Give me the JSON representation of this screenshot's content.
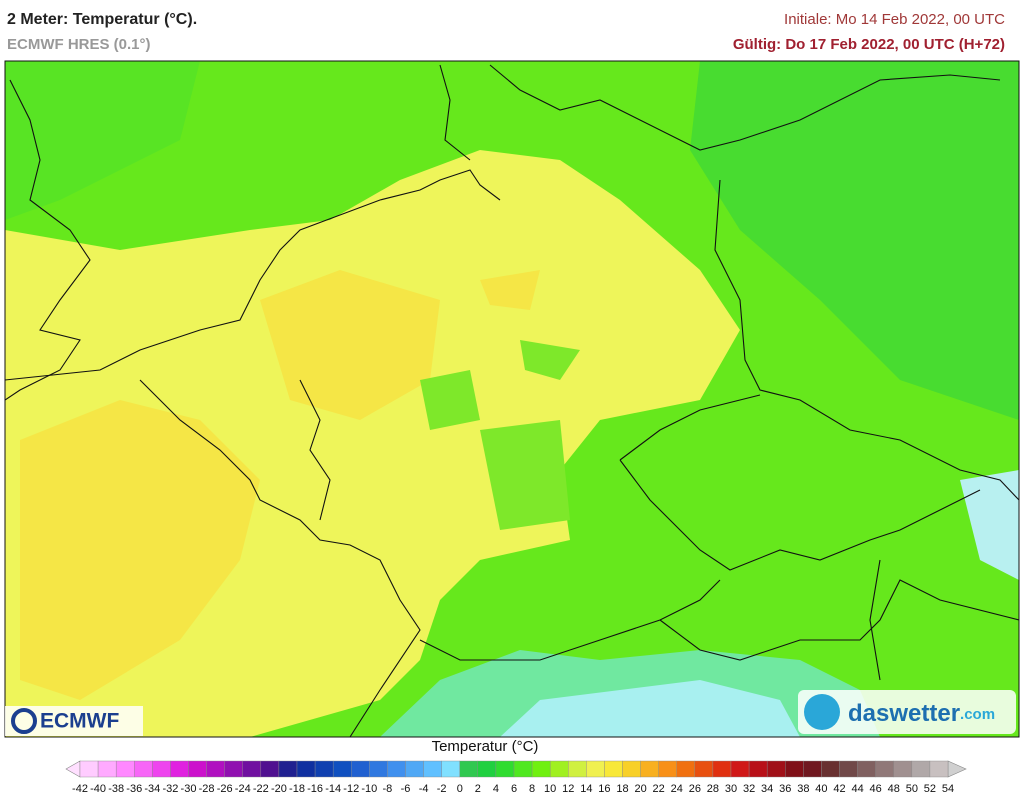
{
  "header": {
    "title": "2 Meter: Temperatur (°C).",
    "model": "ECMWF HRES (0.1°)",
    "initial": "Initiale: Mo 14 Feb 2022, 00 UTC",
    "valid": "Gültig: Do 17 Feb 2022, 00 UTC (H+72)"
  },
  "logos": {
    "left": "ECMWF",
    "right": "daswetter",
    "right_suffix": ".com"
  },
  "colorbar": {
    "title": "Temperatur (°C)",
    "ticks": [
      -42,
      -40,
      -38,
      -36,
      -34,
      -32,
      -30,
      -28,
      -26,
      -24,
      -22,
      -20,
      -18,
      -16,
      -14,
      -12,
      -10,
      -8,
      -6,
      -4,
      -2,
      0,
      2,
      4,
      6,
      8,
      10,
      12,
      14,
      16,
      18,
      20,
      22,
      24,
      26,
      28,
      30,
      32,
      34,
      36,
      38,
      40,
      42,
      44,
      46,
      48,
      50,
      52,
      54
    ],
    "colors": [
      "#ffccff",
      "#ffaaff",
      "#ff88ff",
      "#f766f7",
      "#ee44ee",
      "#e022e0",
      "#cc11cc",
      "#b010c0",
      "#9010b0",
      "#7010a0",
      "#501090",
      "#202090",
      "#1030a0",
      "#1040b0",
      "#1050c0",
      "#2060d0",
      "#3078e0",
      "#4090ee",
      "#50a8f5",
      "#60c0ff",
      "#80e0ff",
      "#30c850",
      "#20d040",
      "#30dc30",
      "#50e820",
      "#70f010",
      "#a0f020",
      "#d0f040",
      "#f0f050",
      "#f8e838",
      "#f8d028",
      "#f8b020",
      "#f89018",
      "#f07010",
      "#e85010",
      "#e03010",
      "#d01818",
      "#b81018",
      "#a01018",
      "#801018",
      "#701820",
      "#683030",
      "#704848",
      "#806060",
      "#907878",
      "#a09090",
      "#b0a8a8",
      "#c8c0c0"
    ],
    "under_color": "#ffe0ff",
    "over_color": "#d0d0d0"
  }
}
